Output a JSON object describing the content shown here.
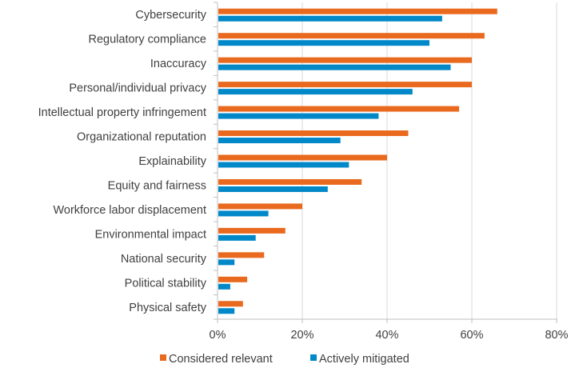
{
  "chart_data": {
    "type": "bar",
    "orientation": "horizontal",
    "title": "",
    "xlabel": "",
    "ylabel": "",
    "xlim": [
      0,
      80
    ],
    "x_ticks": [
      0,
      20,
      40,
      60,
      80
    ],
    "x_tick_labels": [
      "0%",
      "20%",
      "40%",
      "60%",
      "80%"
    ],
    "grid": "vertical major gridlines",
    "legend_position": "bottom",
    "categories": [
      "Cybersecurity",
      "Regulatory compliance",
      "Inaccuracy",
      "Personal/individual privacy",
      "Intellectual property infringement",
      "Organizational reputation",
      "Explainability",
      "Equity and fairness",
      "Workforce labor displacement",
      "Environmental impact",
      "National security",
      "Political stability",
      "Physical safety"
    ],
    "series": [
      {
        "name": "Considered relevant",
        "color": "#E96A1E",
        "values": [
          66,
          63,
          60,
          60,
          57,
          45,
          40,
          34,
          20,
          16,
          11,
          7,
          6
        ]
      },
      {
        "name": "Actively mitigated",
        "color": "#0088C8",
        "values": [
          53,
          50,
          55,
          46,
          38,
          29,
          31,
          26,
          12,
          9,
          4,
          3,
          4
        ]
      }
    ]
  }
}
